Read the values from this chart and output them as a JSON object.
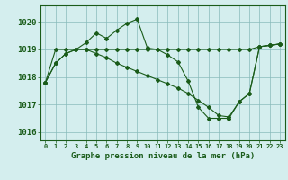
{
  "background_color": "#d4eeee",
  "grid_color": "#88bbbb",
  "line_color": "#1a5c1a",
  "title": "Graphe pression niveau de la mer (hPa)",
  "xlim": [
    -0.5,
    23.5
  ],
  "ylim": [
    1015.7,
    1020.6
  ],
  "yticks": [
    1016,
    1017,
    1018,
    1019,
    1020
  ],
  "xticks": [
    0,
    1,
    2,
    3,
    4,
    5,
    6,
    7,
    8,
    9,
    10,
    11,
    12,
    13,
    14,
    15,
    16,
    17,
    18,
    19,
    20,
    21,
    22,
    23
  ],
  "series": [
    {
      "x": [
        0,
        1,
        2,
        3,
        4,
        5,
        6,
        7,
        8,
        9,
        10,
        11,
        12,
        13,
        14,
        15,
        16,
        17,
        18,
        19,
        20,
        21,
        22,
        23
      ],
      "y": [
        1017.8,
        1019.0,
        1019.0,
        1019.0,
        1019.0,
        1019.0,
        1019.0,
        1019.0,
        1019.0,
        1019.0,
        1019.0,
        1019.0,
        1019.0,
        1019.0,
        1019.0,
        1019.0,
        1019.0,
        1019.0,
        1019.0,
        1019.0,
        1019.0,
        1019.1,
        1019.15,
        1019.2
      ]
    },
    {
      "x": [
        0,
        1,
        2,
        3,
        4,
        5,
        6,
        7,
        8,
        9,
        10,
        11,
        12,
        13,
        14,
        15,
        16,
        17,
        18,
        19,
        20,
        21,
        22,
        23
      ],
      "y": [
        1017.8,
        1018.5,
        1018.85,
        1019.0,
        1019.25,
        1019.6,
        1019.4,
        1019.7,
        1019.95,
        1020.1,
        1019.05,
        1019.0,
        1018.8,
        1018.55,
        1017.85,
        1016.9,
        1016.5,
        1016.5,
        1016.5,
        1017.1,
        1017.4,
        1019.1,
        1019.15,
        1019.2
      ]
    },
    {
      "x": [
        0,
        1,
        2,
        3,
        4,
        5,
        6,
        7,
        8,
        9,
        10,
        11,
        12,
        13,
        14,
        15,
        16,
        17,
        18,
        19,
        20,
        21,
        22,
        23
      ],
      "y": [
        1017.8,
        1018.5,
        1018.85,
        1019.0,
        1019.0,
        1018.85,
        1018.7,
        1018.5,
        1018.35,
        1018.2,
        1018.05,
        1017.9,
        1017.75,
        1017.6,
        1017.4,
        1017.15,
        1016.9,
        1016.6,
        1016.55,
        1017.1,
        1017.4,
        1019.1,
        1019.15,
        1019.2
      ]
    }
  ]
}
